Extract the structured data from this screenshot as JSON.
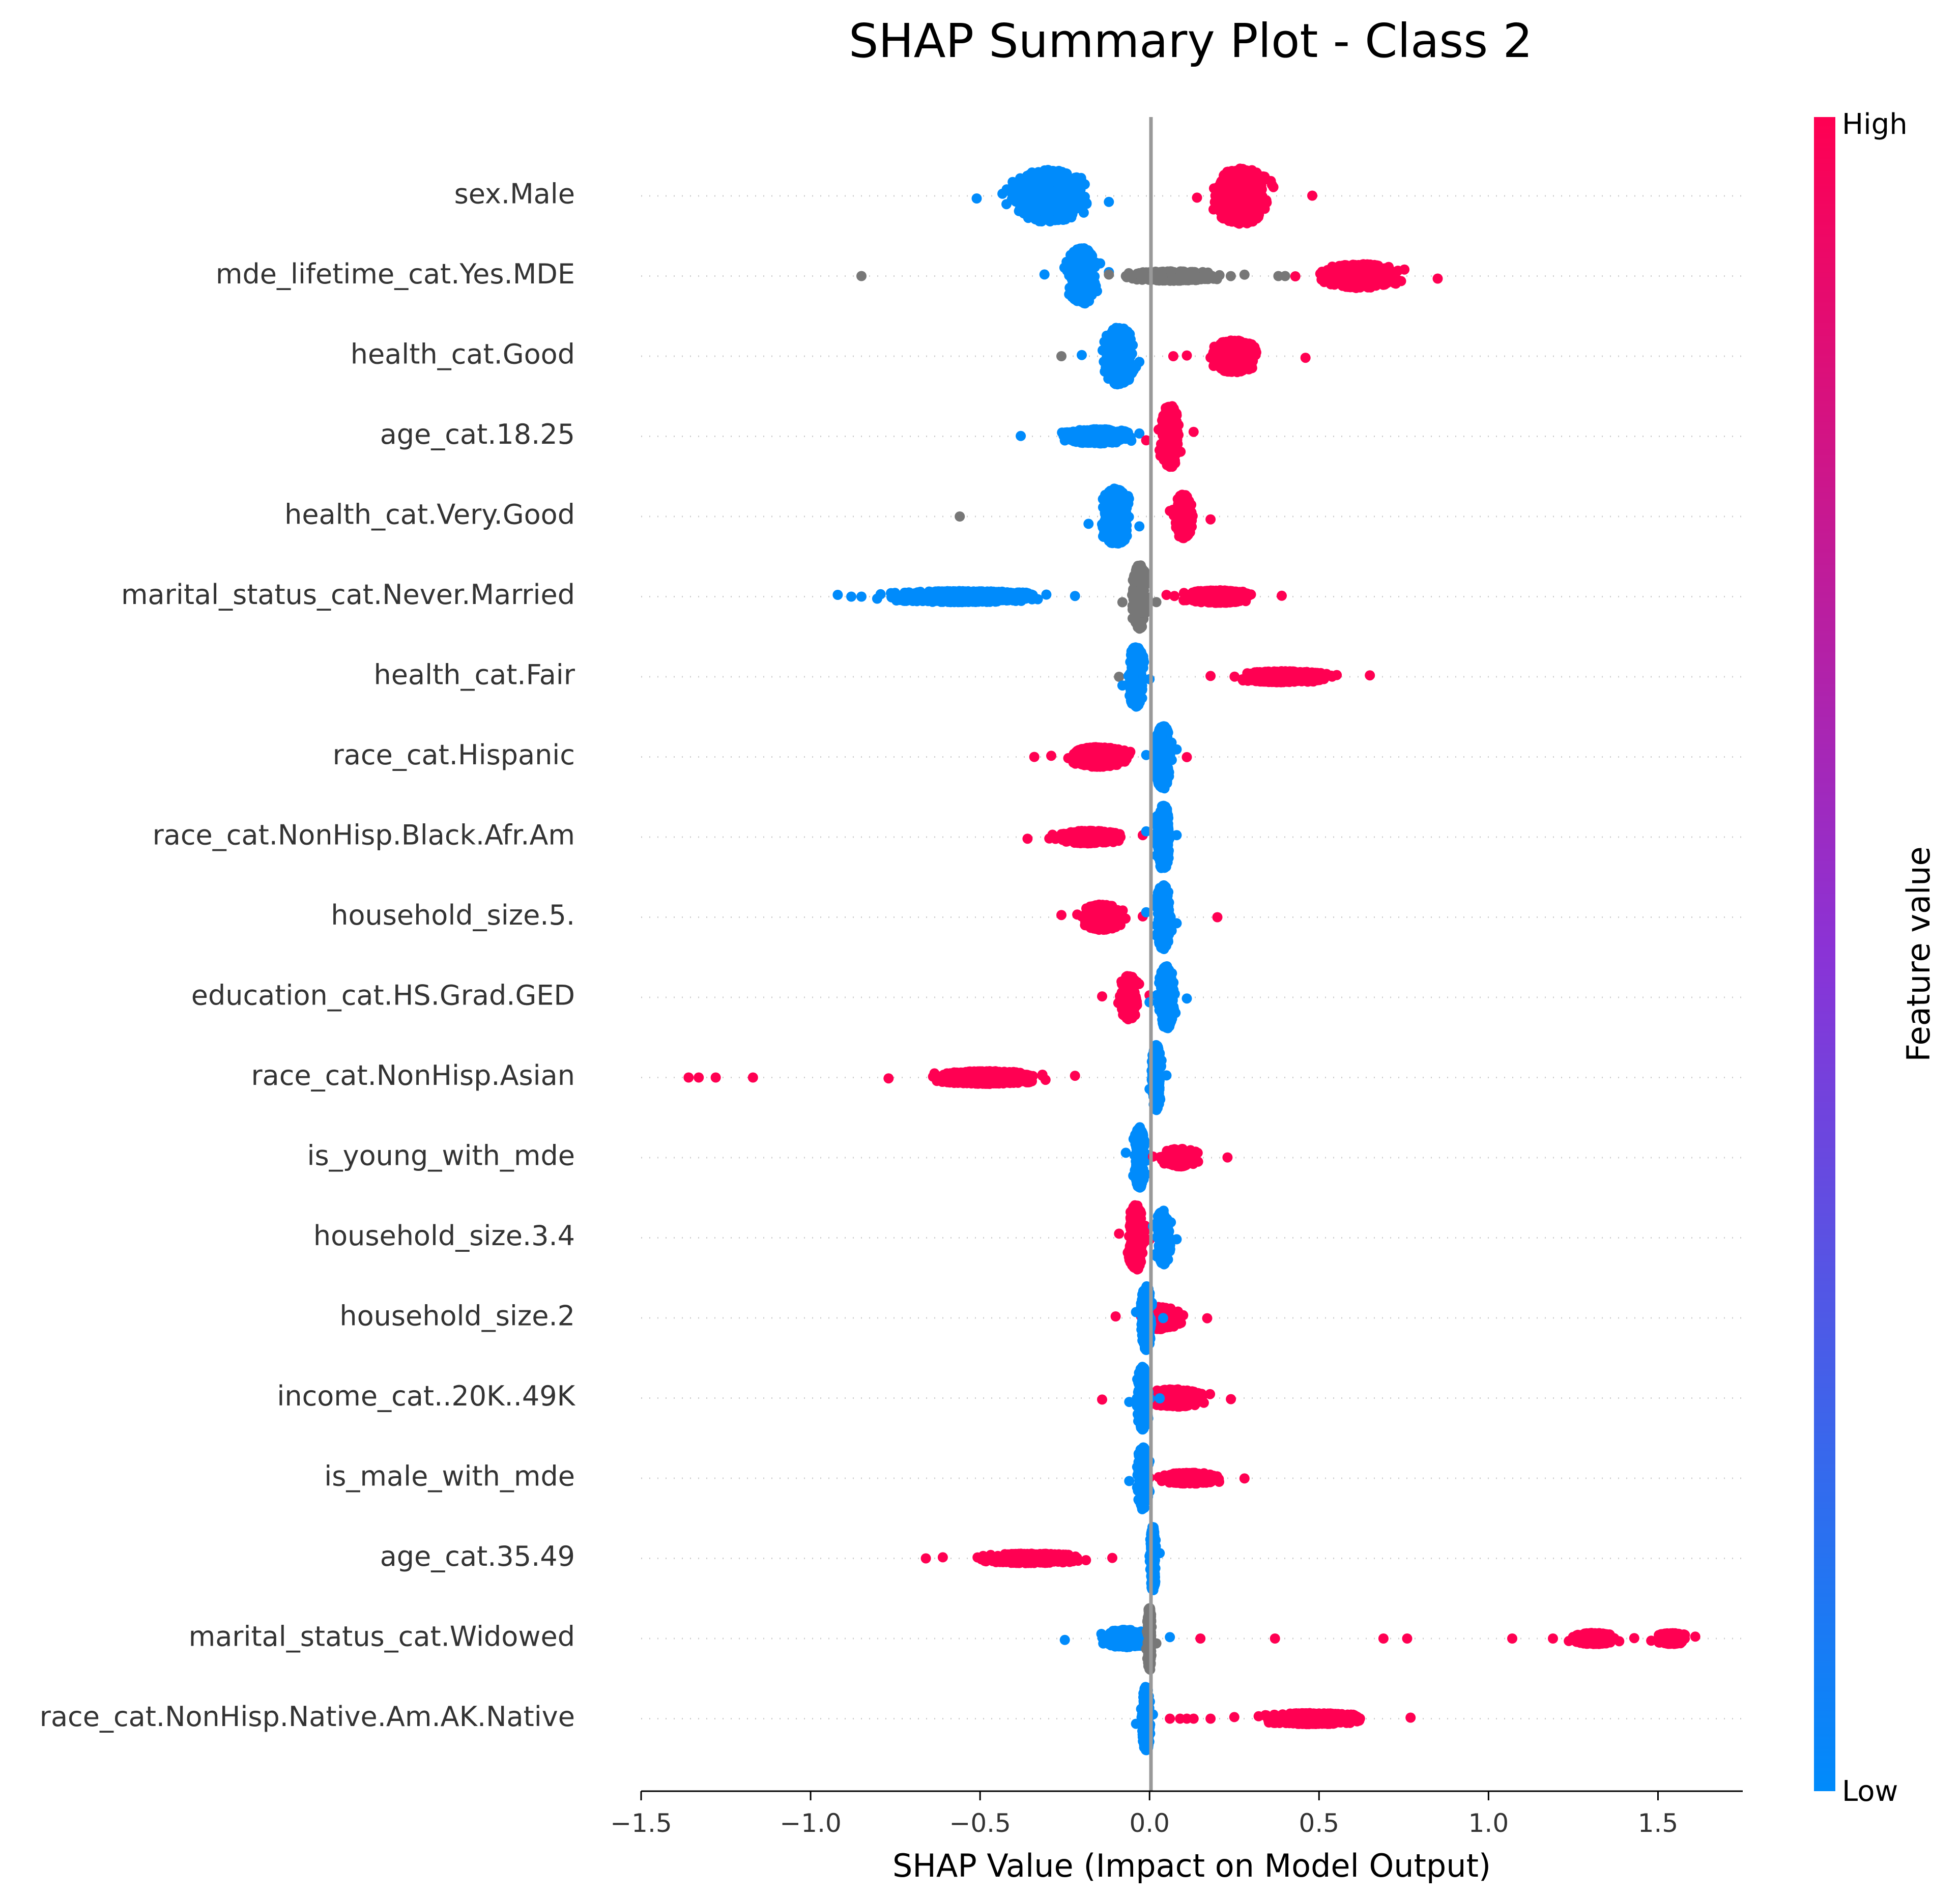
{
  "chart_data": {
    "type": "scatter",
    "subtype": "shap-beeswarm",
    "title": "SHAP Summary Plot - Class 2",
    "xlabel": "SHAP Value (Impact on Model Output)",
    "ylabel": "",
    "xlim": [
      -1.5,
      1.75
    ],
    "xticks": [
      -1.5,
      -1.0,
      -0.5,
      0.0,
      0.5,
      1.0,
      1.5
    ],
    "xtick_labels": [
      "−1.5",
      "−1.0",
      "−0.5",
      "0.0",
      "0.5",
      "1.0",
      "1.5"
    ],
    "grid": false,
    "colorbar": {
      "label": "Feature value",
      "high_label": "High",
      "low_label": "Low",
      "high_color": "#ff0052",
      "mid_color": "#8a33d6",
      "low_color": "#008bfb",
      "missing_color": "#777777"
    },
    "features": [
      {
        "name": "sex.Male",
        "clusters": [
          {
            "color": "low",
            "min": -0.51,
            "max": -0.12,
            "center": -0.3,
            "spread": 0.1,
            "height": 0.65
          },
          {
            "color": "high",
            "min": 0.14,
            "max": 0.48,
            "center": 0.27,
            "spread": 0.07,
            "height": 0.7
          }
        ]
      },
      {
        "name": "mde_lifetime_cat.Yes.MDE",
        "clusters": [
          {
            "color": "missing",
            "points": [
              -0.85
            ]
          },
          {
            "color": "low",
            "min": -0.31,
            "max": -0.12,
            "center": -0.2,
            "spread": 0.04,
            "height": 0.7
          },
          {
            "color": "missing",
            "min": -0.12,
            "max": 0.28,
            "center": 0.07,
            "spread": 0.12,
            "height": 0.12,
            "points": [
              0.38,
              0.4
            ]
          },
          {
            "color": "high",
            "min": 0.43,
            "max": 0.85,
            "center": 0.62,
            "spread": 0.1,
            "height": 0.3
          }
        ]
      },
      {
        "name": "health_cat.Good",
        "clusters": [
          {
            "color": "missing",
            "points": [
              -0.26
            ]
          },
          {
            "color": "low",
            "min": -0.2,
            "max": -0.03,
            "center": -0.09,
            "spread": 0.04,
            "height": 0.72
          },
          {
            "color": "high",
            "points": [
              0.07
            ]
          },
          {
            "color": "high",
            "min": 0.11,
            "max": 0.46,
            "center": 0.25,
            "spread": 0.06,
            "height": 0.4
          }
        ]
      },
      {
        "name": "age_cat.18.25",
        "clusters": [
          {
            "color": "low",
            "min": -0.38,
            "max": -0.03,
            "center": -0.15,
            "spread": 0.09,
            "height": 0.18
          },
          {
            "color": "high",
            "min": -0.01,
            "max": 0.13,
            "center": 0.06,
            "spread": 0.025,
            "height": 0.78
          }
        ]
      },
      {
        "name": "health_cat.Very.Good",
        "clusters": [
          {
            "color": "missing",
            "points": [
              -0.56
            ]
          },
          {
            "color": "low",
            "min": -0.18,
            "max": -0.03,
            "center": -0.1,
            "spread": 0.04,
            "height": 0.7
          },
          {
            "color": "high",
            "min": 0.06,
            "max": 0.18,
            "center": 0.1,
            "spread": 0.025,
            "height": 0.55
          }
        ]
      },
      {
        "name": "marital_status_cat.Never.Married",
        "clusters": [
          {
            "color": "low",
            "min": -0.92,
            "max": -0.22,
            "center": -0.55,
            "spread": 0.2,
            "height": 0.14,
            "points": [
              -0.88,
              -0.85
            ]
          },
          {
            "color": "missing",
            "min": -0.08,
            "max": 0.02,
            "center": -0.03,
            "spread": 0.02,
            "height": 0.8
          },
          {
            "color": "high",
            "min": 0.05,
            "max": 0.39,
            "center": 0.2,
            "spread": 0.09,
            "height": 0.16
          }
        ]
      },
      {
        "name": "health_cat.Fair",
        "clusters": [
          {
            "color": "missing",
            "points": [
              -0.09
            ]
          },
          {
            "color": "low",
            "min": -0.08,
            "max": 0.0,
            "center": -0.04,
            "spread": 0.02,
            "height": 0.76
          },
          {
            "color": "high",
            "min": 0.18,
            "max": 0.65,
            "center": 0.4,
            "spread": 0.12,
            "height": 0.14
          }
        ]
      },
      {
        "name": "race_cat.Hispanic",
        "clusters": [
          {
            "color": "high",
            "points": [
              -0.34
            ]
          },
          {
            "color": "high",
            "min": -0.29,
            "max": 0.11,
            "center": -0.15,
            "spread": 0.07,
            "height": 0.25
          },
          {
            "color": "low",
            "min": -0.01,
            "max": 0.08,
            "center": 0.04,
            "spread": 0.02,
            "height": 0.8
          }
        ]
      },
      {
        "name": "race_cat.NonHisp.Black.Afr.Am",
        "clusters": [
          {
            "color": "high",
            "min": -0.36,
            "max": -0.02,
            "center": -0.18,
            "spread": 0.09,
            "height": 0.16
          },
          {
            "color": "low",
            "min": -0.01,
            "max": 0.08,
            "center": 0.04,
            "spread": 0.02,
            "height": 0.8
          }
        ]
      },
      {
        "name": "household_size.5.",
        "clusters": [
          {
            "color": "high",
            "min": -0.26,
            "max": -0.02,
            "center": -0.14,
            "spread": 0.05,
            "height": 0.32
          },
          {
            "color": "low",
            "min": -0.01,
            "max": 0.08,
            "center": 0.04,
            "spread": 0.02,
            "height": 0.8
          },
          {
            "color": "high",
            "points": [
              0.2
            ]
          }
        ]
      },
      {
        "name": "education_cat.HS.Grad.GED",
        "clusters": [
          {
            "color": "high",
            "min": -0.14,
            "max": 0.0,
            "center": -0.06,
            "spread": 0.025,
            "height": 0.55
          },
          {
            "color": "low",
            "min": 0.0,
            "max": 0.11,
            "center": 0.05,
            "spread": 0.02,
            "height": 0.78
          }
        ]
      },
      {
        "name": "race_cat.NonHisp.Asian",
        "clusters": [
          {
            "color": "high",
            "points": [
              -1.36,
              -1.33,
              -1.28,
              -1.17
            ]
          },
          {
            "color": "high",
            "min": -0.77,
            "max": -0.22,
            "center": -0.48,
            "spread": 0.14,
            "height": 0.16
          },
          {
            "color": "low",
            "min": 0.0,
            "max": 0.05,
            "center": 0.02,
            "spread": 0.012,
            "height": 0.82
          }
        ]
      },
      {
        "name": "is_young_with_mde",
        "clusters": [
          {
            "color": "low",
            "min": -0.07,
            "max": 0.0,
            "center": -0.03,
            "spread": 0.015,
            "height": 0.76
          },
          {
            "color": "high",
            "min": 0.01,
            "max": 0.23,
            "center": 0.09,
            "spread": 0.05,
            "height": 0.22
          }
        ]
      },
      {
        "name": "household_size.3.4",
        "clusters": [
          {
            "color": "high",
            "min": -0.09,
            "max": 0.0,
            "center": -0.04,
            "spread": 0.02,
            "height": 0.82
          },
          {
            "color": "low",
            "min": 0.01,
            "max": 0.08,
            "center": 0.04,
            "spread": 0.02,
            "height": 0.68
          }
        ]
      },
      {
        "name": "household_size.2",
        "clusters": [
          {
            "color": "high",
            "min": -0.1,
            "max": 0.17,
            "center": 0.03,
            "spread": 0.05,
            "height": 0.28
          },
          {
            "color": "low",
            "min": -0.04,
            "max": 0.04,
            "center": -0.01,
            "spread": 0.015,
            "height": 0.8
          }
        ]
      },
      {
        "name": "income_cat..20K..49K",
        "clusters": [
          {
            "color": "high",
            "min": -0.14,
            "max": 0.24,
            "center": 0.07,
            "spread": 0.08,
            "height": 0.22
          },
          {
            "color": "low",
            "min": -0.06,
            "max": 0.03,
            "center": -0.02,
            "spread": 0.015,
            "height": 0.8
          }
        ]
      },
      {
        "name": "is_male_with_mde",
        "clusters": [
          {
            "color": "high",
            "min": 0.0,
            "max": 0.28,
            "center": 0.12,
            "spread": 0.08,
            "height": 0.14
          },
          {
            "color": "low",
            "min": -0.06,
            "max": 0.0,
            "center": -0.02,
            "spread": 0.015,
            "height": 0.78
          }
        ]
      },
      {
        "name": "age_cat.35.49",
        "clusters": [
          {
            "color": "high",
            "points": [
              -0.66
            ]
          },
          {
            "color": "high",
            "min": -0.61,
            "max": -0.11,
            "center": -0.35,
            "spread": 0.13,
            "height": 0.12
          },
          {
            "color": "low",
            "min": 0.0,
            "max": 0.03,
            "center": 0.01,
            "spread": 0.008,
            "height": 0.8
          }
        ]
      },
      {
        "name": "marital_status_cat.Widowed",
        "clusters": [
          {
            "color": "low",
            "min": -0.25,
            "max": 0.06,
            "center": -0.07,
            "spread": 0.06,
            "height": 0.22
          },
          {
            "color": "missing",
            "min": -0.01,
            "max": 0.02,
            "center": 0.0,
            "spread": 0.006,
            "height": 0.8
          },
          {
            "color": "high",
            "points": [
              0.15,
              0.37,
              0.69,
              0.76,
              1.07
            ]
          },
          {
            "color": "high",
            "min": 1.19,
            "max": 1.43,
            "center": 1.31,
            "spread": 0.06,
            "height": 0.14
          },
          {
            "color": "high",
            "min": 1.48,
            "max": 1.61,
            "center": 1.54,
            "spread": 0.04,
            "height": 0.14
          }
        ]
      },
      {
        "name": "race_cat.NonHisp.Native.Am.AK.Native",
        "clusters": [
          {
            "color": "low",
            "min": -0.04,
            "max": 0.01,
            "center": -0.01,
            "spread": 0.012,
            "height": 0.8
          },
          {
            "color": "high",
            "points": [
              0.06,
              0.09,
              0.11,
              0.13,
              0.18
            ]
          },
          {
            "color": "high",
            "min": 0.25,
            "max": 0.77,
            "center": 0.48,
            "spread": 0.13,
            "height": 0.14
          }
        ]
      }
    ]
  }
}
